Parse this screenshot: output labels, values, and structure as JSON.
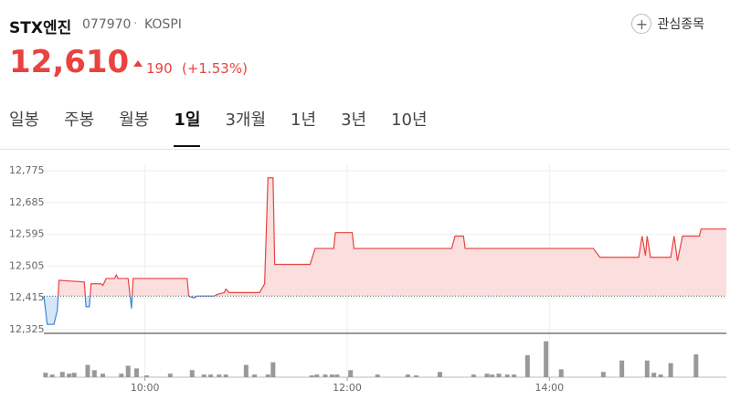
{
  "header": {
    "title": "STX엔진",
    "code": "077970",
    "market": "KOSPI",
    "watch_button": "관심종목",
    "price": "12,610",
    "change": "190",
    "change_pct": "(+1.53%)"
  },
  "tabs": {
    "items": [
      "일봉",
      "주봉",
      "월봉",
      "1일",
      "3개월",
      "1년",
      "3년",
      "10년"
    ],
    "active": 3
  },
  "chart_data": {
    "type": "line",
    "x": [
      "09:00",
      "09:01",
      "09:02",
      "09:06",
      "09:08",
      "09:09",
      "09:24",
      "09:25",
      "09:27",
      "09:28",
      "09:34",
      "09:35",
      "09:37",
      "09:42",
      "09:43",
      "09:44",
      "09:50",
      "09:52",
      "09:53",
      "10:25",
      "10:26",
      "10:29",
      "10:31",
      "10:41",
      "10:43",
      "10:47",
      "10:48",
      "10:50",
      "11:08",
      "11:11",
      "11:13",
      "11:16",
      "11:17",
      "11:38",
      "11:41",
      "11:52",
      "11:53",
      "12:03",
      "12:04",
      "13:02",
      "13:04",
      "13:09",
      "13:10",
      "14:26",
      "14:30",
      "14:53",
      "14:55",
      "14:57",
      "14:58",
      "15:00",
      "15:12",
      "15:14",
      "15:16",
      "15:19",
      "15:29",
      "15:30",
      "15:45"
    ],
    "values": [
      12420,
      12380,
      12340,
      12340,
      12380,
      12465,
      12460,
      12390,
      12390,
      12455,
      12455,
      12450,
      12470,
      12470,
      12480,
      12470,
      12470,
      12385,
      12470,
      12470,
      12420,
      12415,
      12420,
      12420,
      12425,
      12430,
      12440,
      12430,
      12430,
      12455,
      12755,
      12755,
      12510,
      12510,
      12555,
      12555,
      12600,
      12600,
      12555,
      12555,
      12590,
      12590,
      12555,
      12555,
      12530,
      12530,
      12590,
      12535,
      12590,
      12530,
      12530,
      12590,
      12520,
      12590,
      12590,
      12610,
      12610
    ],
    "base": 12420,
    "color_up": "#e8433f",
    "color_down": "#3d86d8",
    "xlim": [
      "09:00",
      "15:45"
    ],
    "xticks": [
      "10:00",
      "12:00",
      "14:00"
    ],
    "ylim": [
      12325,
      12775
    ],
    "yticks": [
      {
        "value": 12325,
        "label": "12,325"
      },
      {
        "value": 12415,
        "label": "12,415"
      },
      {
        "value": 12505,
        "label": "12,505"
      },
      {
        "value": 12595,
        "label": "12,595"
      },
      {
        "value": 12685,
        "label": "12,685"
      },
      {
        "value": 12775,
        "label": "12,775"
      }
    ],
    "grid": true,
    "volume": {
      "color": "#999999",
      "ylim": [
        0,
        50
      ],
      "x": [
        "09:01",
        "09:05",
        "09:11",
        "09:15",
        "09:18",
        "09:26",
        "09:30",
        "09:35",
        "09:46",
        "09:50",
        "09:55",
        "10:01",
        "10:15",
        "10:28",
        "10:35",
        "10:39",
        "10:44",
        "10:48",
        "11:00",
        "11:05",
        "11:13",
        "11:16",
        "11:39",
        "11:42",
        "11:47",
        "11:51",
        "11:54",
        "12:02",
        "12:18",
        "12:36",
        "12:41",
        "12:55",
        "13:15",
        "13:23",
        "13:26",
        "13:30",
        "13:35",
        "13:39",
        "13:47",
        "13:58",
        "14:07",
        "14:32",
        "14:43",
        "14:58",
        "15:02",
        "15:06",
        "15:12",
        "15:27"
      ],
      "values": [
        5,
        3,
        6,
        4,
        5,
        14,
        8,
        4,
        4,
        13,
        10,
        2,
        4,
        8,
        3,
        3,
        3,
        3,
        14,
        3,
        3,
        17,
        2,
        3,
        3,
        3,
        3,
        8,
        3,
        3,
        2,
        6,
        3,
        4,
        3,
        4,
        3,
        3,
        25,
        41,
        9,
        6,
        19,
        19,
        5,
        3,
        16,
        26
      ]
    }
  }
}
